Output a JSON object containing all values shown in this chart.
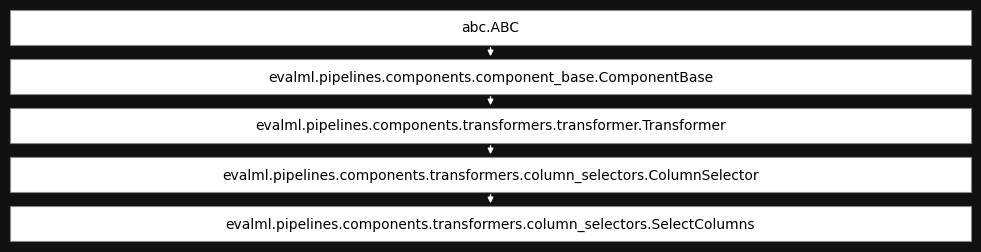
{
  "nodes": [
    "abc.ABC",
    "evalml.pipelines.components.component_base.ComponentBase",
    "evalml.pipelines.components.transformers.transformer.Transformer",
    "evalml.pipelines.components.transformers.column_selectors.ColumnSelector",
    "evalml.pipelines.components.transformers.column_selectors.SelectColumns"
  ],
  "background_color": "#111111",
  "box_fill_color": "#ffffff",
  "box_edge_color": "#888888",
  "text_color": "#000000",
  "arrow_color": "#ffffff",
  "font_size": 10,
  "fig_width": 9.81,
  "fig_height": 2.53,
  "dpi": 100
}
